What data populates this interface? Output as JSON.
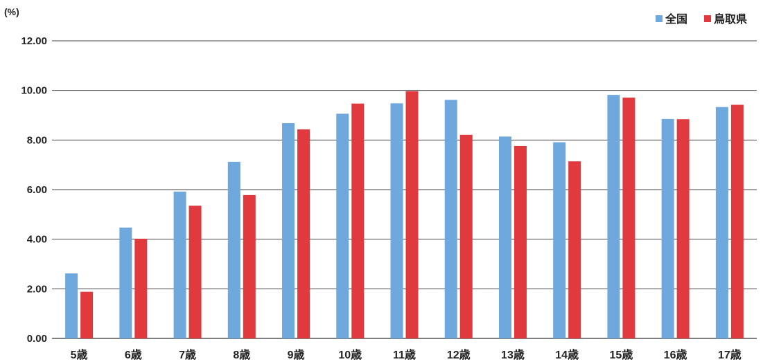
{
  "chart_data": {
    "type": "bar",
    "unit_label": "(%)",
    "categories": [
      "5歳",
      "6歳",
      "7歳",
      "8歳",
      "9歳",
      "10歳",
      "11歳",
      "12歳",
      "13歳",
      "14歳",
      "15歳",
      "16歳",
      "17歳"
    ],
    "series": [
      {
        "name": "全国",
        "color": "#6fa8dc",
        "values": [
          2.62,
          4.47,
          5.92,
          7.12,
          8.68,
          9.06,
          9.48,
          9.62,
          8.14,
          7.91,
          9.82,
          8.85,
          9.33
        ]
      },
      {
        "name": "鳥取県",
        "color": "#e0393e",
        "values": [
          1.88,
          4.02,
          5.35,
          5.78,
          8.43,
          9.47,
          9.97,
          8.21,
          7.76,
          7.14,
          9.71,
          8.84,
          9.42
        ]
      }
    ],
    "ylim": [
      0,
      12
    ],
    "yticks": [
      "0.00",
      "2.00",
      "4.00",
      "6.00",
      "8.00",
      "10.00",
      "12.00"
    ],
    "ytick_values": [
      0,
      2,
      4,
      6,
      8,
      10,
      12
    ],
    "grid": true,
    "legend": "top-right"
  }
}
